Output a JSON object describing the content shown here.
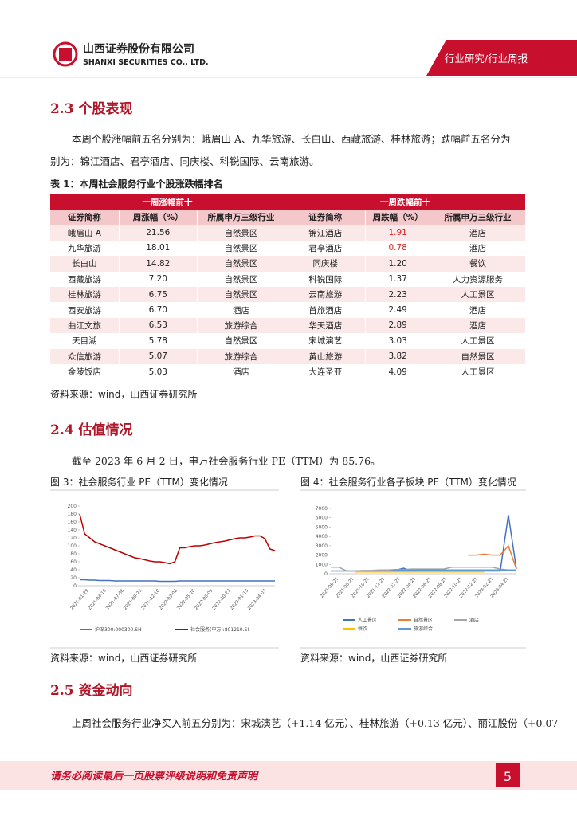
{
  "header": {
    "company_cn": "山西证券股份有限公司",
    "company_en": "SHANXI SECURITIES CO., LTD.",
    "category": "行业研究/行业周报"
  },
  "section_23": {
    "title": "2.3 个股表现",
    "lines": [
      "本周个股涨幅前五名分别为：峨眉山 A、九华旅游、长白山、西藏旅游、桂林旅游；跌幅前五名分为",
      "别为：锦江酒店、君亭酒店、同庆楼、科锐国际、云南旅游。"
    ]
  },
  "table": {
    "caption": "表 1：本周社会服务行业个股涨跌幅排名",
    "groups": [
      "一周涨幅前十",
      "一周跌幅前十"
    ],
    "columns": [
      "证券简称",
      "周涨幅（%）",
      "所属申万三级行业",
      "证券简称",
      "周跌幅（%）",
      "所属申万三级行业"
    ],
    "rows": [
      [
        "峨眉山 A",
        "21.56",
        "自然景区",
        "锦江酒店",
        "1.91",
        "酒店"
      ],
      [
        "九华旅游",
        "18.01",
        "自然景区",
        "君亭酒店",
        "0.78",
        "酒店"
      ],
      [
        "长白山",
        "14.82",
        "自然景区",
        "同庆楼",
        "1.20",
        "餐饮"
      ],
      [
        "西藏旅游",
        "7.20",
        "自然景区",
        "科锐国际",
        "1.37",
        "人力资源服务"
      ],
      [
        "桂林旅游",
        "6.75",
        "自然景区",
        "云南旅游",
        "2.23",
        "人工景区"
      ],
      [
        "西安旅游",
        "6.70",
        "酒店",
        "首旅酒店",
        "2.49",
        "酒店"
      ],
      [
        "曲江文旅",
        "6.53",
        "旅游综合",
        "华天酒店",
        "2.89",
        "酒店"
      ],
      [
        "天目湖",
        "5.78",
        "自然景区",
        "宋城演艺",
        "3.03",
        "人工景区"
      ],
      [
        "众信旅游",
        "5.07",
        "旅游综合",
        "黄山旅游",
        "3.82",
        "自然景区"
      ],
      [
        "金陵饭店",
        "5.03",
        "酒店",
        "大连圣亚",
        "4.09",
        "人工景区"
      ]
    ],
    "source": "资料来源：wind，山西证券研究所"
  },
  "section_24": {
    "title": "2.4 估值情况",
    "text": "截至 2023 年 6 月 2 日，申万社会服务行业 PE（TTM）为 85.76。"
  },
  "figures": [
    {
      "caption": "图 3：社会服务行业 PE（TTM）变化情况",
      "source": "资料来源：wind，山西证券研究所",
      "chart": {
        "type": "line",
        "ylim": [
          0,
          200
        ],
        "yticks": [
          0,
          20,
          40,
          60,
          80,
          100,
          120,
          140,
          160,
          180,
          200
        ],
        "x_labels": [
          "2021-01-29",
          "2021-04-19",
          "2021-07-06",
          "2021-09-23",
          "2021-12-10",
          "2022-03-02",
          "2022-05-20",
          "2022-08-09",
          "2022-10-27",
          "2023-01-13",
          "2023-04-03"
        ],
        "series": [
          {
            "name": "沪深300:000300.SH",
            "color": "#4472c4",
            "values": [
              15,
              15,
              14,
              14,
              13,
              13,
              13,
              12,
              12,
              12,
              12,
              12,
              12,
              12,
              12,
              12,
              11,
              11,
              11,
              11,
              12,
              12,
              12,
              12,
              12,
              12,
              12,
              12,
              12,
              12,
              12,
              12,
              12,
              12,
              12,
              12,
              12,
              12,
              12,
              12
            ]
          },
          {
            "name": "社会服务(申万):801210.SI",
            "color": "#c00000",
            "values": [
              180,
              130,
              120,
              110,
              105,
              100,
              95,
              90,
              85,
              80,
              75,
              70,
              68,
              65,
              62,
              60,
              60,
              58,
              55,
              60,
              95,
              95,
              98,
              100,
              100,
              102,
              105,
              108,
              110,
              112,
              115,
              118,
              120,
              120,
              122,
              125,
              125,
              118,
              92,
              88
            ]
          }
        ]
      }
    },
    {
      "caption": "图 4：社会服务行业各子板块 PE（TTM）变化情况",
      "source": "资料来源：wind，山西证券研究所",
      "chart": {
        "type": "line",
        "ylim": [
          0,
          7000
        ],
        "yticks": [
          0,
          1000,
          2000,
          3000,
          4000,
          5000,
          6000,
          7000
        ],
        "x_labels": [
          "2021-06-21",
          "2021-08-21",
          "2021-10-21",
          "2021-12-21",
          "2022-02-21",
          "2022-04-21",
          "2022-06-21",
          "2022-08-21",
          "2022-10-21",
          "2022-12-21",
          "2023-02-21",
          "2023-04-21"
        ],
        "series": [
          {
            "name": "人工景区",
            "color": "#4472c4",
            "values": [
              300,
              300,
              300,
              300,
              300,
              300,
              300,
              300,
              350,
              600,
              300,
              300,
              300,
              300,
              300,
              300,
              300,
              300,
              300,
              300,
              300,
              300,
              6300,
              500
            ]
          },
          {
            "name": "自然景区",
            "color": "#ed7d31",
            "values": [
              null,
              null,
              null,
              null,
              null,
              null,
              null,
              null,
              null,
              null,
              null,
              null,
              null,
              null,
              null,
              null,
              null,
              2000,
              2000,
              2100,
              2000,
              2000,
              3000,
              500
            ]
          },
          {
            "name": "酒店",
            "color": "#a5a5a5",
            "values": [
              700,
              700,
              300,
              300,
              350,
              350,
              400,
              400,
              450,
              450,
              500,
              500,
              500,
              500,
              500,
              700,
              700,
              700,
              700,
              700,
              700,
              500,
              400,
              400
            ]
          },
          {
            "name": "餐饮",
            "color": "#ffc000",
            "values": [
              null,
              null,
              null,
              200,
              200,
              200,
              200,
              200,
              200,
              200,
              200,
              200,
              200,
              200,
              200,
              200,
              200,
              200,
              200,
              200,
              null,
              null,
              null,
              null
            ]
          },
          {
            "name": "旅游综合",
            "color": "#5b9bd5",
            "values": [
              null,
              null,
              null,
              null,
              null,
              null,
              null,
              null,
              400,
              400,
              400,
              400,
              400,
              400,
              400,
              400,
              400,
              400,
              400,
              400,
              400,
              400,
              400,
              400
            ]
          }
        ]
      }
    }
  ],
  "section_25": {
    "title": "2.5 资金动向",
    "text": "上周社会服务行业净买入前五分别为：宋城演艺（+1.14 亿元）、桂林旅游（+0.13 亿元）、丽江股份（+0.07"
  },
  "footer": {
    "disclaimer": "请务必阅读最后一页股票评级说明和免责声明",
    "page": "5"
  }
}
